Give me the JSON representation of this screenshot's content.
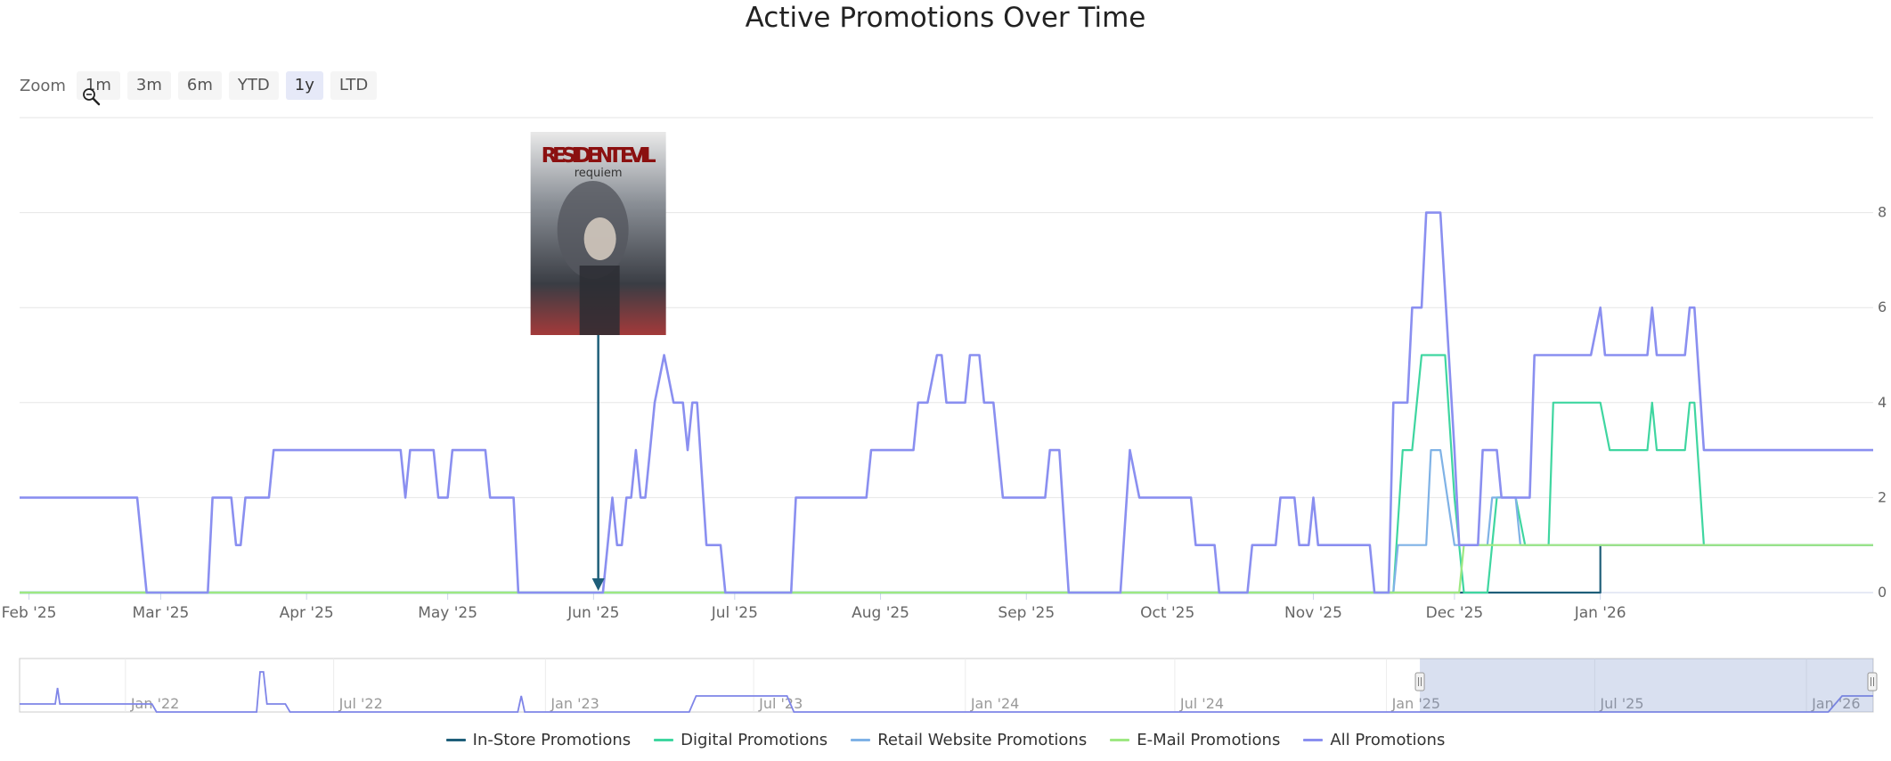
{
  "chart_data": {
    "type": "line",
    "title": "Active Promotions Over Time",
    "zoom": {
      "label": "Zoom",
      "buttons": [
        "1m",
        "3m",
        "6m",
        "YTD",
        "1y",
        "LTD"
      ],
      "selected": "1y"
    },
    "x_range": [
      "2025-01-30",
      "2026-02-28"
    ],
    "ylim": [
      0,
      10
    ],
    "y_ticks": [
      0,
      2,
      4,
      6,
      8
    ],
    "x_ticks": [
      {
        "date": "2025-02-01",
        "label": "Feb '25"
      },
      {
        "date": "2025-03-01",
        "label": "Mar '25"
      },
      {
        "date": "2025-04-01",
        "label": "Apr '25"
      },
      {
        "date": "2025-05-01",
        "label": "May '25"
      },
      {
        "date": "2025-06-01",
        "label": "Jun '25"
      },
      {
        "date": "2025-07-01",
        "label": "Jul '25"
      },
      {
        "date": "2025-08-01",
        "label": "Aug '25"
      },
      {
        "date": "2025-09-01",
        "label": "Sep '25"
      },
      {
        "date": "2025-10-01",
        "label": "Oct '25"
      },
      {
        "date": "2025-11-01",
        "label": "Nov '25"
      },
      {
        "date": "2025-12-01",
        "label": "Dec '25"
      },
      {
        "date": "2026-01-01",
        "label": "Jan '26"
      }
    ],
    "grid": true,
    "legend_position": "bottom-center",
    "series": [
      {
        "name": "In-Store Promotions",
        "color": "#1f5f7a",
        "points": [
          [
            "2025-01-30",
            0
          ],
          [
            "2026-01-01",
            0
          ],
          [
            "2026-01-01",
            1
          ],
          [
            "2026-02-28",
            1
          ]
        ]
      },
      {
        "name": "Digital Promotions",
        "color": "#3fd6a0",
        "points": [
          [
            "2025-01-30",
            0
          ],
          [
            "2025-11-18",
            0
          ],
          [
            "2025-11-20",
            3
          ],
          [
            "2025-11-22",
            3
          ],
          [
            "2025-11-24",
            5
          ],
          [
            "2025-11-29",
            5
          ],
          [
            "2025-12-01",
            2
          ],
          [
            "2025-12-03",
            0
          ],
          [
            "2025-12-08",
            0
          ],
          [
            "2025-12-10",
            2
          ],
          [
            "2025-12-14",
            2
          ],
          [
            "2025-12-16",
            1
          ],
          [
            "2025-12-21",
            1
          ],
          [
            "2025-12-22",
            4
          ],
          [
            "2026-01-01",
            4
          ],
          [
            "2026-01-03",
            3
          ],
          [
            "2026-01-11",
            3
          ],
          [
            "2026-01-12",
            4
          ],
          [
            "2026-01-13",
            3
          ],
          [
            "2026-01-19",
            3
          ],
          [
            "2026-01-20",
            4
          ],
          [
            "2026-01-21",
            4
          ],
          [
            "2026-01-23",
            1
          ],
          [
            "2026-02-28",
            1
          ]
        ]
      },
      {
        "name": "Retail Website Promotions",
        "color": "#7fb2e6",
        "points": [
          [
            "2025-01-30",
            0
          ],
          [
            "2025-11-18",
            0
          ],
          [
            "2025-11-19",
            1
          ],
          [
            "2025-11-25",
            1
          ],
          [
            "2025-11-26",
            3
          ],
          [
            "2025-11-28",
            3
          ],
          [
            "2025-12-01",
            1
          ],
          [
            "2025-12-08",
            1
          ],
          [
            "2025-12-09",
            2
          ],
          [
            "2025-12-14",
            2
          ],
          [
            "2025-12-15",
            1
          ],
          [
            "2026-02-28",
            1
          ]
        ]
      },
      {
        "name": "E-Mail Promotions",
        "color": "#9ee882",
        "points": [
          [
            "2025-01-30",
            0
          ],
          [
            "2025-11-18",
            0
          ],
          [
            "2025-12-02",
            0
          ],
          [
            "2025-12-03",
            1
          ],
          [
            "2026-02-28",
            1
          ]
        ]
      },
      {
        "name": "All Promotions",
        "color": "#8a8ff0",
        "points": [
          [
            "2025-01-30",
            2
          ],
          [
            "2025-02-24",
            2
          ],
          [
            "2025-02-26",
            0
          ],
          [
            "2025-03-11",
            0
          ],
          [
            "2025-03-12",
            2
          ],
          [
            "2025-03-16",
            2
          ],
          [
            "2025-03-17",
            1
          ],
          [
            "2025-03-18",
            1
          ],
          [
            "2025-03-19",
            2
          ],
          [
            "2025-03-24",
            2
          ],
          [
            "2025-03-25",
            3
          ],
          [
            "2025-04-21",
            3
          ],
          [
            "2025-04-22",
            2
          ],
          [
            "2025-04-23",
            3
          ],
          [
            "2025-04-28",
            3
          ],
          [
            "2025-04-29",
            2
          ],
          [
            "2025-05-01",
            2
          ],
          [
            "2025-05-02",
            3
          ],
          [
            "2025-05-09",
            3
          ],
          [
            "2025-05-10",
            2
          ],
          [
            "2025-05-15",
            2
          ],
          [
            "2025-05-16",
            0
          ],
          [
            "2025-06-03",
            0
          ],
          [
            "2025-06-05",
            2
          ],
          [
            "2025-06-06",
            1
          ],
          [
            "2025-06-07",
            1
          ],
          [
            "2025-06-08",
            2
          ],
          [
            "2025-06-09",
            2
          ],
          [
            "2025-06-10",
            3
          ],
          [
            "2025-06-11",
            2
          ],
          [
            "2025-06-12",
            2
          ],
          [
            "2025-06-13",
            3
          ],
          [
            "2025-06-14",
            4
          ],
          [
            "2025-06-16",
            5
          ],
          [
            "2025-06-18",
            4
          ],
          [
            "2025-06-20",
            4
          ],
          [
            "2025-06-21",
            3
          ],
          [
            "2025-06-22",
            4
          ],
          [
            "2025-06-23",
            4
          ],
          [
            "2025-06-25",
            1
          ],
          [
            "2025-06-28",
            1
          ],
          [
            "2025-06-29",
            0
          ],
          [
            "2025-07-13",
            0
          ],
          [
            "2025-07-14",
            2
          ],
          [
            "2025-07-29",
            2
          ],
          [
            "2025-07-30",
            3
          ],
          [
            "2025-08-08",
            3
          ],
          [
            "2025-08-09",
            4
          ],
          [
            "2025-08-11",
            4
          ],
          [
            "2025-08-13",
            5
          ],
          [
            "2025-08-14",
            5
          ],
          [
            "2025-08-15",
            4
          ],
          [
            "2025-08-19",
            4
          ],
          [
            "2025-08-20",
            5
          ],
          [
            "2025-08-22",
            5
          ],
          [
            "2025-08-23",
            4
          ],
          [
            "2025-08-25",
            4
          ],
          [
            "2025-08-27",
            2
          ],
          [
            "2025-09-05",
            2
          ],
          [
            "2025-09-06",
            3
          ],
          [
            "2025-09-08",
            3
          ],
          [
            "2025-09-10",
            0
          ],
          [
            "2025-09-21",
            0
          ],
          [
            "2025-09-23",
            3
          ],
          [
            "2025-09-25",
            2
          ],
          [
            "2025-10-06",
            2
          ],
          [
            "2025-10-07",
            1
          ],
          [
            "2025-10-11",
            1
          ],
          [
            "2025-10-12",
            0
          ],
          [
            "2025-10-18",
            0
          ],
          [
            "2025-10-19",
            1
          ],
          [
            "2025-10-24",
            1
          ],
          [
            "2025-10-25",
            2
          ],
          [
            "2025-10-28",
            2
          ],
          [
            "2025-10-29",
            1
          ],
          [
            "2025-10-31",
            1
          ],
          [
            "2025-11-01",
            2
          ],
          [
            "2025-11-02",
            1
          ],
          [
            "2025-11-13",
            1
          ],
          [
            "2025-11-14",
            0
          ],
          [
            "2025-11-17",
            0
          ],
          [
            "2025-11-18",
            4
          ],
          [
            "2025-11-21",
            4
          ],
          [
            "2025-11-22",
            6
          ],
          [
            "2025-11-24",
            6
          ],
          [
            "2025-11-25",
            8
          ],
          [
            "2025-11-28",
            8
          ],
          [
            "2025-12-01",
            3
          ],
          [
            "2025-12-02",
            1
          ],
          [
            "2025-12-06",
            1
          ],
          [
            "2025-12-07",
            3
          ],
          [
            "2025-12-10",
            3
          ],
          [
            "2025-12-11",
            2
          ],
          [
            "2025-12-17",
            2
          ],
          [
            "2025-12-18",
            5
          ],
          [
            "2025-12-30",
            5
          ],
          [
            "2026-01-01",
            6
          ],
          [
            "2026-01-02",
            5
          ],
          [
            "2026-01-11",
            5
          ],
          [
            "2026-01-12",
            6
          ],
          [
            "2026-01-13",
            5
          ],
          [
            "2026-01-19",
            5
          ],
          [
            "2026-01-20",
            6
          ],
          [
            "2026-01-21",
            6
          ],
          [
            "2026-01-23",
            3
          ],
          [
            "2026-02-28",
            3
          ]
        ]
      }
    ],
    "annotation": {
      "date": "2025-06-02",
      "label": "RESIDENT EVIL",
      "sublabel": "requiem"
    },
    "navigator": {
      "x_range": [
        "2021-10-01",
        "2026-02-28"
      ],
      "selected_range": [
        "2025-01-30",
        "2026-02-28"
      ],
      "tick_labels": [
        {
          "date": "2022-01-01",
          "label": "Jan '22"
        },
        {
          "date": "2022-07-01",
          "label": "Jul '22"
        },
        {
          "date": "2023-01-01",
          "label": "Jan '23"
        },
        {
          "date": "2023-07-01",
          "label": "Jul '23"
        },
        {
          "date": "2024-01-01",
          "label": "Jan '24"
        },
        {
          "date": "2024-07-01",
          "label": "Jul '24"
        },
        {
          "date": "2025-01-01",
          "label": "Jan '25"
        },
        {
          "date": "2025-07-01",
          "label": "Jul '25"
        },
        {
          "date": "2026-01-01",
          "label": "Jan '26"
        }
      ],
      "series_points": [
        [
          "2021-10-01",
          1
        ],
        [
          "2021-11-01",
          1
        ],
        [
          "2021-11-03",
          3
        ],
        [
          "2021-11-05",
          1
        ],
        [
          "2022-01-24",
          1
        ],
        [
          "2022-01-28",
          0
        ],
        [
          "2022-04-25",
          0
        ],
        [
          "2022-04-28",
          5
        ],
        [
          "2022-05-01",
          5
        ],
        [
          "2022-05-04",
          1
        ],
        [
          "2022-05-20",
          1
        ],
        [
          "2022-05-24",
          0
        ],
        [
          "2022-12-08",
          0
        ],
        [
          "2022-12-11",
          2
        ],
        [
          "2022-12-14",
          0
        ],
        [
          "2023-05-06",
          0
        ],
        [
          "2023-05-12",
          2
        ],
        [
          "2023-07-30",
          2
        ],
        [
          "2023-08-05",
          0
        ],
        [
          "2026-01-20",
          0
        ],
        [
          "2026-02-01",
          2
        ],
        [
          "2026-02-28",
          2
        ]
      ]
    }
  }
}
